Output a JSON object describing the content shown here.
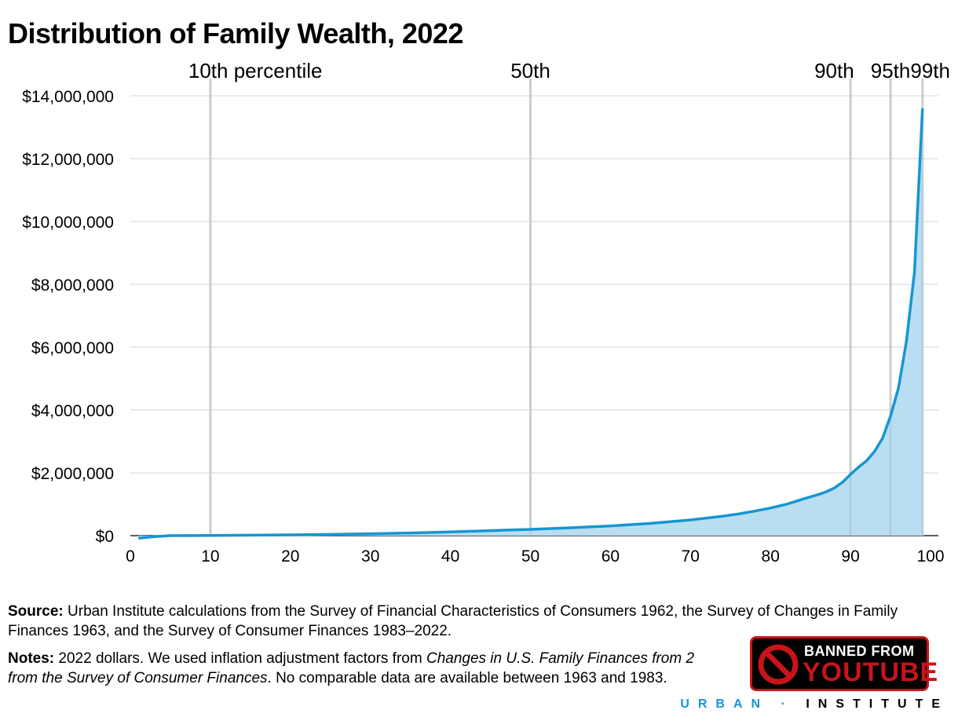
{
  "chart_data": {
    "type": "area",
    "title": "Distribution of Family Wealth, 2022",
    "xlabel": "",
    "ylabel": "",
    "xlim": [
      0,
      100
    ],
    "ylim": [
      0,
      14000000
    ],
    "grid": true,
    "x_ticks": [
      "0",
      "10",
      "20",
      "30",
      "40",
      "50",
      "60",
      "70",
      "80",
      "90",
      "100"
    ],
    "y_ticks": [
      "$0",
      "$2,000,000",
      "$4,000,000",
      "$6,000,000",
      "$8,000,000",
      "$10,000,000",
      "$12,000,000",
      "$14,000,000"
    ],
    "y_tick_values": [
      0,
      2000000,
      4000000,
      6000000,
      8000000,
      10000000,
      12000000,
      14000000
    ],
    "x_tick_values": [
      0,
      10,
      20,
      30,
      40,
      50,
      60,
      70,
      80,
      90,
      100
    ],
    "percentile_markers": [
      {
        "x": 10,
        "label": "10th percentile"
      },
      {
        "x": 50,
        "label": "50th"
      },
      {
        "x": 90,
        "label": "90th"
      },
      {
        "x": 95,
        "label": "95th"
      },
      {
        "x": 99,
        "label": "99th"
      }
    ],
    "series": [
      {
        "x": [
          1,
          3,
          5,
          10,
          15,
          20,
          25,
          30,
          35,
          40,
          45,
          50,
          55,
          60,
          65,
          70,
          72,
          74,
          76,
          78,
          80,
          82,
          84,
          86,
          87,
          88,
          89,
          90,
          91,
          92,
          93,
          94,
          95,
          96,
          97,
          98,
          99
        ],
        "values": [
          -80000,
          -30000,
          0,
          5000,
          15000,
          25000,
          40000,
          60000,
          85000,
          120000,
          160000,
          200000,
          250000,
          310000,
          390000,
          500000,
          560000,
          620000,
          690000,
          780000,
          880000,
          1000000,
          1160000,
          1310000,
          1400000,
          1520000,
          1700000,
          1950000,
          2180000,
          2380000,
          2680000,
          3100000,
          3800000,
          4700000,
          6200000,
          8400000,
          13600000
        ]
      }
    ],
    "colors": {
      "line": "#1696d2",
      "fill": "#b6dcf0",
      "grid": "#dedede",
      "marker": "#dcdcdc"
    }
  },
  "footer": {
    "source_label": "Source:",
    "source_text": " Urban Institute calculations from the Survey of Financial Characteristics of Consumers 1962, the Survey of Changes in Family Finances 1963, and the Survey of Consumer Finances 1983–2022.",
    "notes_label": "Notes:",
    "notes_text_1": " 2022 dollars. We used inflation adjustment factors from ",
    "notes_italic_1": "Changes in U.S. Family Finances from 2",
    "notes_text_2": "",
    "notes_italic_2": "from the Survey of Consumer Finances",
    "notes_text_3": ". No comparable data are available between 1963 and 1983."
  },
  "badge": {
    "line1": "BANNED FROM",
    "line2": "YOUTUBE",
    "icon": "prohibited-icon"
  },
  "brand": {
    "part1": "URBAN",
    "separator": "·",
    "part2": "INSTITUTE"
  }
}
